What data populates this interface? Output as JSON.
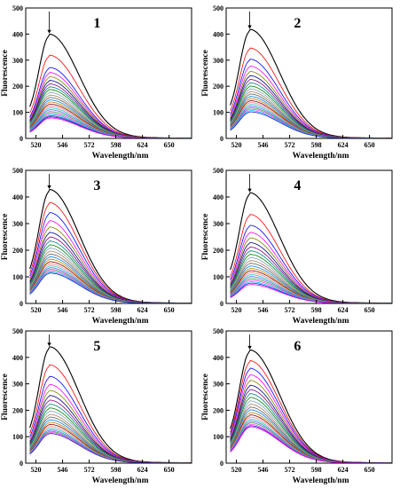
{
  "chart_data": [
    {
      "type": "line",
      "panel_label": "1",
      "xlabel": "Wavelength/nm",
      "ylabel": "Fluorescence",
      "xlim": [
        510,
        672
      ],
      "ylim": [
        0,
        500
      ],
      "x_ticks": [
        520,
        546,
        572,
        598,
        624,
        650
      ],
      "y_ticks": [
        0,
        100,
        200,
        300,
        400,
        500
      ],
      "peak_x": 533,
      "arrow": "down",
      "series": [
        {
          "color": "#000000",
          "peak": 392
        },
        {
          "color": "#ff0000",
          "peak": 313
        },
        {
          "color": "#0000ff",
          "peak": 267
        },
        {
          "color": "#ff00ff",
          "peak": 248
        },
        {
          "color": "#808000",
          "peak": 232
        },
        {
          "color": "#000080",
          "peak": 218
        },
        {
          "color": "#800080",
          "peak": 205
        },
        {
          "color": "#008080",
          "peak": 194
        },
        {
          "color": "#008000",
          "peak": 184
        },
        {
          "color": "#80a0c0",
          "peak": 173
        },
        {
          "color": "#a08060",
          "peak": 163
        },
        {
          "color": "#606060",
          "peak": 154
        },
        {
          "color": "#0080ff",
          "peak": 145
        },
        {
          "color": "#c08000",
          "peak": 137
        },
        {
          "color": "#800000",
          "peak": 129
        },
        {
          "color": "#ff8080",
          "peak": 122
        },
        {
          "color": "#20c0c0",
          "peak": 115
        },
        {
          "color": "#6060ff",
          "peak": 108
        },
        {
          "color": "#40a040",
          "peak": 101
        },
        {
          "color": "#ff40ff",
          "peak": 95
        },
        {
          "color": "#00c0ff",
          "peak": 90
        },
        {
          "color": "#4040a0",
          "peak": 85
        },
        {
          "color": "#2020c0",
          "peak": 81
        },
        {
          "color": "#ff00ff",
          "peak": 77
        }
      ]
    },
    {
      "type": "line",
      "panel_label": "2",
      "xlabel": "Wavelength/nm",
      "ylabel": "Fluorescence",
      "xlim": [
        510,
        672
      ],
      "ylim": [
        0,
        500
      ],
      "x_ticks": [
        520,
        546,
        572,
        598,
        624,
        650
      ],
      "y_ticks": [
        0,
        100,
        200,
        300,
        400,
        500
      ],
      "peak_x": 533,
      "arrow": "down",
      "series": [
        {
          "color": "#000000",
          "peak": 410
        },
        {
          "color": "#ff0000",
          "peak": 340
        },
        {
          "color": "#0000ff",
          "peak": 298
        },
        {
          "color": "#ff00ff",
          "peak": 272
        },
        {
          "color": "#808000",
          "peak": 252
        },
        {
          "color": "#000080",
          "peak": 236
        },
        {
          "color": "#800080",
          "peak": 222
        },
        {
          "color": "#008080",
          "peak": 209
        },
        {
          "color": "#008000",
          "peak": 197
        },
        {
          "color": "#80a0c0",
          "peak": 186
        },
        {
          "color": "#a08060",
          "peak": 176
        },
        {
          "color": "#606060",
          "peak": 167
        },
        {
          "color": "#0080ff",
          "peak": 158
        },
        {
          "color": "#c08000",
          "peak": 150
        },
        {
          "color": "#800000",
          "peak": 142
        },
        {
          "color": "#ff8080",
          "peak": 135
        },
        {
          "color": "#20c0c0",
          "peak": 128
        },
        {
          "color": "#6060ff",
          "peak": 121
        },
        {
          "color": "#40a040",
          "peak": 115
        },
        {
          "color": "#ff40ff",
          "peak": 110
        },
        {
          "color": "#00c0ff",
          "peak": 105
        },
        {
          "color": "#2020c0",
          "peak": 100
        }
      ]
    },
    {
      "type": "line",
      "panel_label": "3",
      "xlabel": "Wavelength/nm",
      "ylabel": "Fluorescence",
      "xlim": [
        510,
        672
      ],
      "ylim": [
        0,
        500
      ],
      "x_ticks": [
        520,
        546,
        572,
        598,
        624,
        650
      ],
      "y_ticks": [
        0,
        100,
        200,
        300,
        400,
        500
      ],
      "peak_x": 533,
      "arrow": "down",
      "series": [
        {
          "color": "#000000",
          "peak": 420
        },
        {
          "color": "#ff0000",
          "peak": 372
        },
        {
          "color": "#0000ff",
          "peak": 335
        },
        {
          "color": "#ff00ff",
          "peak": 305
        },
        {
          "color": "#808000",
          "peak": 282
        },
        {
          "color": "#000080",
          "peak": 262
        },
        {
          "color": "#800080",
          "peak": 245
        },
        {
          "color": "#008080",
          "peak": 230
        },
        {
          "color": "#008000",
          "peak": 216
        },
        {
          "color": "#80a0c0",
          "peak": 204
        },
        {
          "color": "#a08060",
          "peak": 193
        },
        {
          "color": "#606060",
          "peak": 182
        },
        {
          "color": "#0080ff",
          "peak": 172
        },
        {
          "color": "#c08000",
          "peak": 163
        },
        {
          "color": "#800000",
          "peak": 154
        },
        {
          "color": "#ff8080",
          "peak": 146
        },
        {
          "color": "#20c0c0",
          "peak": 139
        },
        {
          "color": "#6060ff",
          "peak": 132
        },
        {
          "color": "#40a040",
          "peak": 126
        },
        {
          "color": "#ff40ff",
          "peak": 121
        },
        {
          "color": "#00c0ff",
          "peak": 116
        },
        {
          "color": "#2020c0",
          "peak": 112
        }
      ]
    },
    {
      "type": "line",
      "panel_label": "4",
      "xlabel": "Wavelength/nm",
      "ylabel": "Fluorescence",
      "xlim": [
        510,
        672
      ],
      "ylim": [
        0,
        500
      ],
      "x_ticks": [
        520,
        546,
        572,
        598,
        624,
        650
      ],
      "y_ticks": [
        0,
        100,
        200,
        300,
        400,
        500
      ],
      "peak_x": 533,
      "arrow": "down",
      "series": [
        {
          "color": "#000000",
          "peak": 408
        },
        {
          "color": "#ff0000",
          "peak": 328
        },
        {
          "color": "#0000ff",
          "peak": 288
        },
        {
          "color": "#ff00ff",
          "peak": 262
        },
        {
          "color": "#808000",
          "peak": 242
        },
        {
          "color": "#000080",
          "peak": 224
        },
        {
          "color": "#800080",
          "peak": 208
        },
        {
          "color": "#008080",
          "peak": 194
        },
        {
          "color": "#008000",
          "peak": 181
        },
        {
          "color": "#80a0c0",
          "peak": 169
        },
        {
          "color": "#a08060",
          "peak": 158
        },
        {
          "color": "#606060",
          "peak": 148
        },
        {
          "color": "#0080ff",
          "peak": 138
        },
        {
          "color": "#c08000",
          "peak": 129
        },
        {
          "color": "#800000",
          "peak": 121
        },
        {
          "color": "#ff8080",
          "peak": 113
        },
        {
          "color": "#20c0c0",
          "peak": 106
        },
        {
          "color": "#6060ff",
          "peak": 99
        },
        {
          "color": "#40a040",
          "peak": 92
        },
        {
          "color": "#ff40ff",
          "peak": 86
        },
        {
          "color": "#00c0ff",
          "peak": 80
        },
        {
          "color": "#2020c0",
          "peak": 75
        },
        {
          "color": "#ff00ff",
          "peak": 70
        }
      ]
    },
    {
      "type": "line",
      "panel_label": "5",
      "xlabel": "Wavelength/nm",
      "ylabel": "Fluorescence",
      "xlim": [
        510,
        672
      ],
      "ylim": [
        0,
        500
      ],
      "x_ticks": [
        520,
        546,
        572,
        598,
        624,
        650
      ],
      "y_ticks": [
        0,
        100,
        200,
        300,
        400,
        500
      ],
      "peak_x": 533,
      "arrow": "down",
      "series": [
        {
          "color": "#000000",
          "peak": 432
        },
        {
          "color": "#ff0000",
          "peak": 365
        },
        {
          "color": "#0000ff",
          "peak": 322
        },
        {
          "color": "#ff00ff",
          "peak": 292
        },
        {
          "color": "#808000",
          "peak": 270
        },
        {
          "color": "#000080",
          "peak": 251
        },
        {
          "color": "#800080",
          "peak": 234
        },
        {
          "color": "#008080",
          "peak": 219
        },
        {
          "color": "#008000",
          "peak": 205
        },
        {
          "color": "#80a0c0",
          "peak": 193
        },
        {
          "color": "#a08060",
          "peak": 181
        },
        {
          "color": "#606060",
          "peak": 171
        },
        {
          "color": "#0080ff",
          "peak": 161
        },
        {
          "color": "#c08000",
          "peak": 152
        },
        {
          "color": "#800000",
          "peak": 144
        },
        {
          "color": "#ff8080",
          "peak": 136
        },
        {
          "color": "#20c0c0",
          "peak": 129
        },
        {
          "color": "#6060ff",
          "peak": 123
        },
        {
          "color": "#40a040",
          "peak": 118
        },
        {
          "color": "#ff40ff",
          "peak": 114
        },
        {
          "color": "#2020c0",
          "peak": 110
        }
      ]
    },
    {
      "type": "line",
      "panel_label": "6",
      "xlabel": "Wavelength/nm",
      "ylabel": "Fluorescence",
      "xlim": [
        510,
        672
      ],
      "ylim": [
        0,
        500
      ],
      "x_ticks": [
        520,
        546,
        572,
        598,
        624,
        650
      ],
      "y_ticks": [
        0,
        100,
        200,
        300,
        400,
        500
      ],
      "peak_x": 533,
      "arrow": "down",
      "series": [
        {
          "color": "#000000",
          "peak": 420
        },
        {
          "color": "#ff0000",
          "peak": 380
        },
        {
          "color": "#0000ff",
          "peak": 352
        },
        {
          "color": "#ff00ff",
          "peak": 328
        },
        {
          "color": "#808000",
          "peak": 307
        },
        {
          "color": "#000080",
          "peak": 289
        },
        {
          "color": "#800080",
          "peak": 273
        },
        {
          "color": "#008080",
          "peak": 258
        },
        {
          "color": "#008000",
          "peak": 244
        },
        {
          "color": "#80a0c0",
          "peak": 231
        },
        {
          "color": "#a08060",
          "peak": 219
        },
        {
          "color": "#606060",
          "peak": 208
        },
        {
          "color": "#0080ff",
          "peak": 198
        },
        {
          "color": "#c08000",
          "peak": 188
        },
        {
          "color": "#800000",
          "peak": 179
        },
        {
          "color": "#ff8080",
          "peak": 171
        },
        {
          "color": "#20c0c0",
          "peak": 163
        },
        {
          "color": "#6060ff",
          "peak": 156
        },
        {
          "color": "#40a040",
          "peak": 150
        },
        {
          "color": "#ff40ff",
          "peak": 144
        },
        {
          "color": "#2020c0",
          "peak": 139
        },
        {
          "color": "#ff00ff",
          "peak": 135
        }
      ]
    }
  ]
}
